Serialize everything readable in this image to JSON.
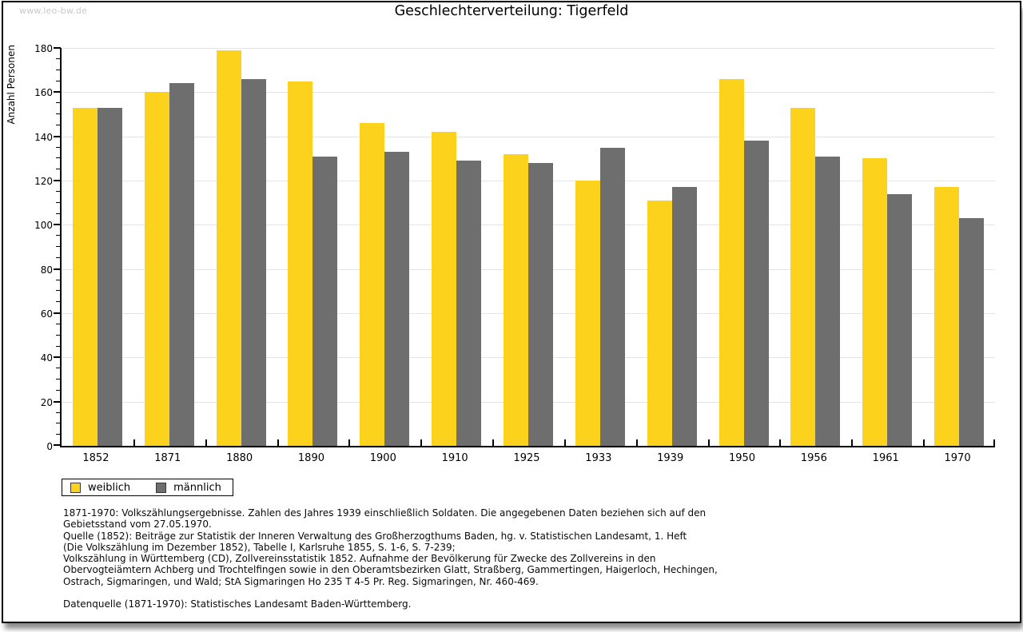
{
  "window": {
    "watermark": "www.leo-bw.de"
  },
  "header": {
    "title": "Geschlechterverteilung: Tigerfeld"
  },
  "chart_data": {
    "type": "bar",
    "title": "Geschlechterverteilung: Tigerfeld",
    "xlabel": "",
    "ylabel": "Anzahl Personen",
    "categories": [
      "1852",
      "1871",
      "1880",
      "1890",
      "1900",
      "1910",
      "1925",
      "1933",
      "1939",
      "1950",
      "1956",
      "1961",
      "1970"
    ],
    "series": [
      {
        "name": "weiblich",
        "color": "#fcd21c",
        "values": [
          153,
          160,
          179,
          165,
          146,
          142,
          132,
          120,
          111,
          166,
          153,
          130,
          117
        ]
      },
      {
        "name": "männlich",
        "color": "#6e6e6e",
        "values": [
          153,
          164,
          166,
          131,
          133,
          129,
          128,
          135,
          117,
          138,
          131,
          114,
          103
        ]
      }
    ],
    "ylim": [
      0,
      180
    ],
    "ytick_step": 20,
    "minor_tick_step": 5,
    "grid": "horizontal",
    "gridline_color": "#e4e4e4",
    "legend_position": "bottom-left"
  },
  "footer": {
    "lines": [
      "1871-1970: Volkszählungsergebnisse. Zahlen des Jahres 1939 einschließlich Soldaten. Die angegebenen Daten beziehen sich auf den",
      "Gebietsstand vom 27.05.1970.",
      "Quelle (1852): Beiträge zur Statistik der Inneren Verwaltung des Großherzogthums Baden, hg. v. Statistischen Landesamt, 1. Heft",
      "(Die Volkszählung im Dezember 1852), Tabelle I, Karlsruhe 1855, S. 1-6, S. 7-239;",
      "Volkszählung in Württemberg (CD), Zollvereinsstatistik 1852. Aufnahme der Bevölkerung für Zwecke des Zollvereins in den",
      "Obervogteiämtern Achberg und Trochtelfingen sowie in den Oberamtsbezirken Glatt, Straßberg, Gammertingen, Haigerloch, Hechingen,",
      "Ostrach, Sigmaringen, und Wald; StA Sigmaringen Ho 235 T 4-5 Pr. Reg. Sigmaringen, Nr. 460-469."
    ],
    "datasource": "Datenquelle (1871-1970): Statistisches Landesamt Baden-Württemberg."
  },
  "colors": {
    "female_bar": "#fcd21c",
    "male_bar": "#6e6e6e",
    "grid": "#e4e4e4",
    "watermark_text": "#c9c9c9",
    "axis": "#000000"
  }
}
